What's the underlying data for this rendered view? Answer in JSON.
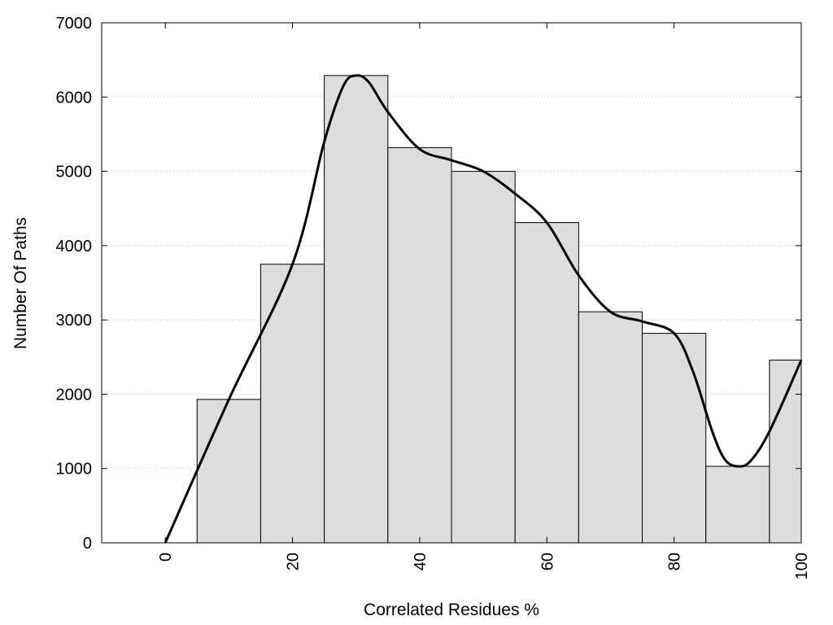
{
  "chart_data": {
    "type": "bar",
    "title": "",
    "xlabel": "Correlated Residues %",
    "ylabel": "Number Of Paths",
    "xlim": [
      -10,
      100
    ],
    "ylim": [
      0,
      7000
    ],
    "x_ticks": [
      0,
      20,
      40,
      60,
      80,
      100
    ],
    "x_tick_labels": [
      "0",
      "20",
      "40",
      "60",
      "80",
      "100"
    ],
    "y_ticks": [
      0,
      1000,
      2000,
      3000,
      4000,
      5000,
      6000,
      7000
    ],
    "y_tick_labels": [
      "0",
      "1000",
      "2000",
      "3000",
      "4000",
      "5000",
      "6000",
      "7000"
    ],
    "bar_width": 10,
    "bars": [
      {
        "x": 10,
        "value": 1930
      },
      {
        "x": 20,
        "value": 3750
      },
      {
        "x": 30,
        "value": 6290
      },
      {
        "x": 40,
        "value": 5320
      },
      {
        "x": 50,
        "value": 5000
      },
      {
        "x": 60,
        "value": 4310
      },
      {
        "x": 70,
        "value": 3110
      },
      {
        "x": 80,
        "value": 2820
      },
      {
        "x": 90,
        "value": 1030
      },
      {
        "x": 100,
        "value": 2460
      }
    ],
    "curve": {
      "x": [
        0,
        10,
        20,
        25,
        28,
        30,
        32,
        35,
        40,
        45,
        50,
        55,
        60,
        65,
        70,
        75,
        80,
        83,
        86,
        88,
        90,
        92,
        95,
        100
      ],
      "y": [
        0,
        1930,
        3750,
        5400,
        6150,
        6290,
        6200,
        5800,
        5300,
        5150,
        5000,
        4700,
        4310,
        3600,
        3110,
        2980,
        2820,
        2300,
        1500,
        1120,
        1030,
        1100,
        1500,
        2460
      ]
    },
    "grid": {
      "y": true,
      "x": false
    },
    "colors": {
      "bar_fill": "#dddddd",
      "bar_stroke": "#000000",
      "curve": "#000000",
      "grid": "#bbbbbb"
    }
  }
}
